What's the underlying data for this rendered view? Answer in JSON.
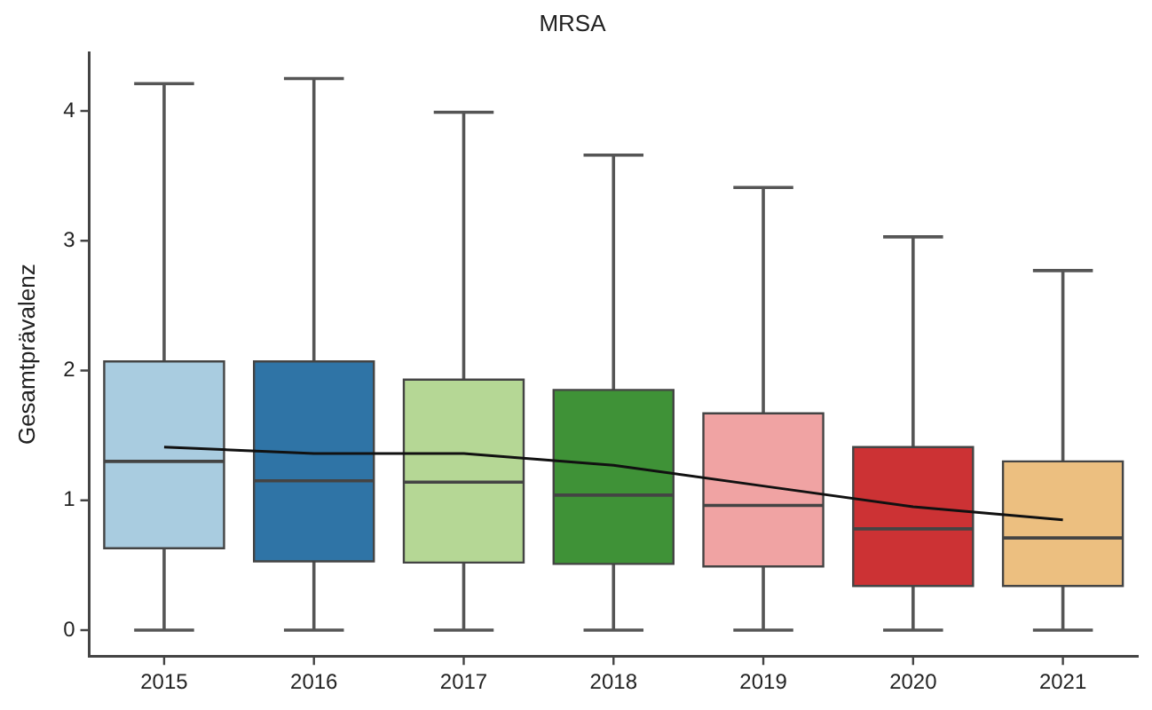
{
  "chart_data": {
    "type": "box",
    "title": "MRSA",
    "ylabel": "Gesamtprävalenz",
    "categories": [
      "2015",
      "2016",
      "2017",
      "2018",
      "2019",
      "2020",
      "2021"
    ],
    "colors": [
      "#a9cce0",
      "#2f74a6",
      "#b5d795",
      "#3f9237",
      "#f0a3a3",
      "#cc3234",
      "#ecbf80"
    ],
    "boxes": [
      {
        "low": 0,
        "q1": 0.63,
        "median": 1.3,
        "q3": 2.07,
        "high": 4.21
      },
      {
        "low": 0,
        "q1": 0.53,
        "median": 1.15,
        "q3": 2.07,
        "high": 4.25
      },
      {
        "low": 0,
        "q1": 0.52,
        "median": 1.14,
        "q3": 1.93,
        "high": 3.99
      },
      {
        "low": 0,
        "q1": 0.51,
        "median": 1.04,
        "q3": 1.85,
        "high": 3.66
      },
      {
        "low": 0,
        "q1": 0.49,
        "median": 0.96,
        "q3": 1.67,
        "high": 3.41
      },
      {
        "low": 0,
        "q1": 0.34,
        "median": 0.78,
        "q3": 1.41,
        "high": 3.03
      },
      {
        "low": 0,
        "q1": 0.34,
        "median": 0.71,
        "q3": 1.3,
        "high": 2.77
      }
    ],
    "series": [
      {
        "type": "line",
        "color": "#111111",
        "values": [
          1.41,
          1.36,
          1.36,
          1.27,
          1.11,
          0.95,
          0.85
        ]
      }
    ],
    "ylim": [
      -0.2,
      4.45
    ],
    "yticks": [
      0,
      1,
      2,
      3,
      4
    ]
  }
}
